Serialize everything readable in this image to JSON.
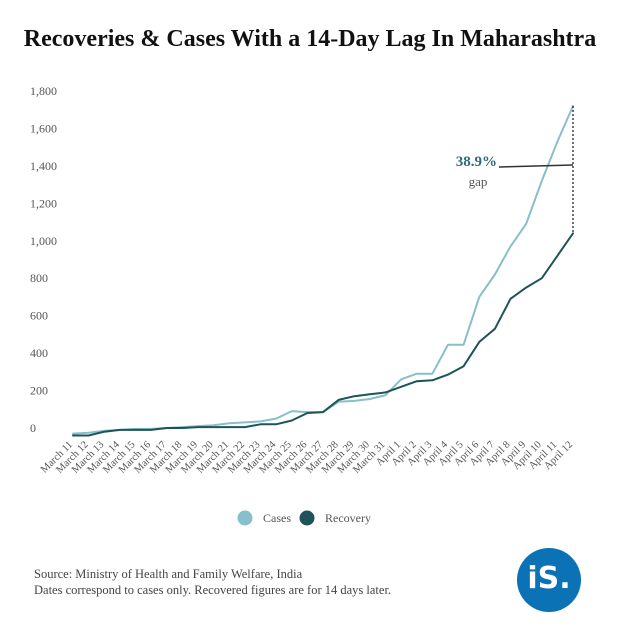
{
  "title": "Recoveries & Cases With a 14-Day Lag In Maharashtra",
  "footer": {
    "source": "Source: Ministry of Health and Family Welfare, India",
    "note": "Dates correspond to cases only. Recovered figures are for 14 days later."
  },
  "logo": {
    "text": "iS.",
    "color": "#0b72b5"
  },
  "colors": {
    "cases": "#87bfca",
    "recovery": "#1e5358",
    "annotation": "#2f6a76"
  },
  "chart_data": {
    "type": "line",
    "title": "Recoveries & Cases With a 14-Day Lag In Maharashtra",
    "xlabel": "",
    "ylabel": "",
    "ylim": [
      0,
      1800
    ],
    "yticks": [
      0,
      200,
      400,
      600,
      800,
      1000,
      1200,
      1400,
      1600,
      1800
    ],
    "grid": false,
    "legend_position": "bottom-center",
    "categories": [
      "March 11",
      "March 12",
      "March 13",
      "March 14",
      "March 15",
      "March 16",
      "March 17",
      "March 18",
      "March 19",
      "March 20",
      "March 21",
      "March 22",
      "March 23",
      "March 24",
      "March 25",
      "March 26",
      "March 27",
      "March 28",
      "March 29",
      "March 30",
      "March 31",
      "April 1",
      "April 2",
      "April 3",
      "April 4",
      "April 5",
      "April 6",
      "April 7",
      "April 8",
      "April 9",
      "April 10",
      "April 11",
      "April 12"
    ],
    "series": [
      {
        "name": "Cases",
        "values": [
          -30,
          -25,
          -15,
          -10,
          -5,
          -5,
          0,
          5,
          10,
          15,
          25,
          30,
          35,
          50,
          90,
          85,
          85,
          140,
          145,
          155,
          175,
          260,
          290,
          290,
          445,
          445,
          700,
          820,
          970,
          1090,
          1320,
          1530,
          1720
        ]
      },
      {
        "name": "Recovery",
        "values": [
          -40,
          -40,
          -20,
          -10,
          -10,
          -10,
          0,
          0,
          5,
          5,
          5,
          5,
          20,
          20,
          40,
          80,
          85,
          150,
          170,
          180,
          190,
          220,
          250,
          255,
          285,
          330,
          460,
          530,
          690,
          750,
          800,
          920,
          1040
        ]
      }
    ],
    "annotation": {
      "value": "38.9%",
      "label": "gap",
      "category": "April 12"
    }
  }
}
